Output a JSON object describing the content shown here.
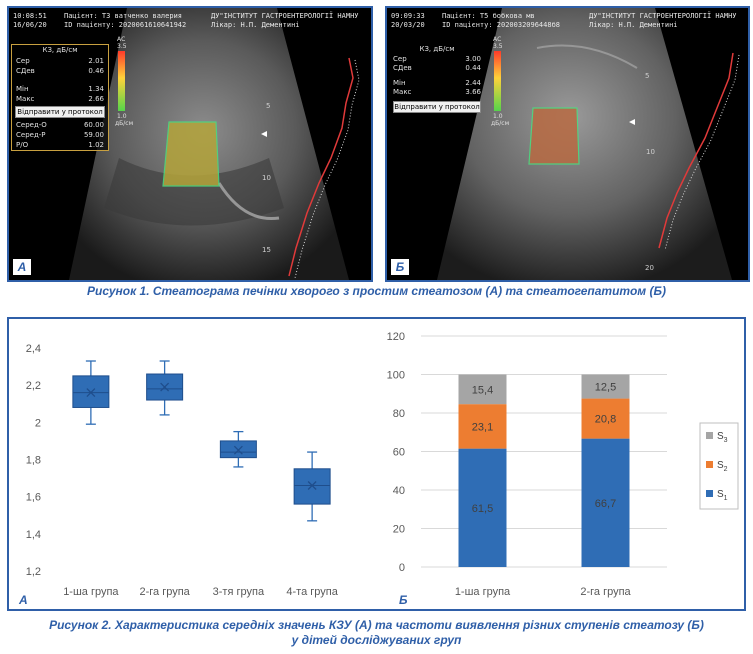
{
  "figure1": {
    "panel_a": {
      "letter": "А",
      "time": "10:08:51",
      "date": "16/06/20",
      "patient": "Пацієнт: Т3 ватченко валерия",
      "patient_id": "ID пацієнту: 2020061610641942",
      "institute": "ДУ\"ІНСТИТУТ ГАСТРОЕНТЕРОЛОГІЇ НАМНУ",
      "doctor": "Лікар: Н.П. Дементині",
      "kz_title": "КЗ, дБ/см",
      "stats": [
        {
          "label": "Сер",
          "value": "2.01"
        },
        {
          "label": "СДев",
          "value": "0.46"
        },
        {
          "label": "Мін",
          "value": "1.34"
        },
        {
          "label": "Макс",
          "value": "2.66"
        }
      ],
      "send_button": "Відправити у протокол",
      "extra": [
        {
          "label": "Серед-О",
          "value": "60.00"
        },
        {
          "label": "Серед-Р",
          "value": "59.00"
        },
        {
          "label": "Р/О",
          "value": "1.02"
        }
      ],
      "scale_top": "АС",
      "scale_max": "3.5",
      "scale_min": "1.0",
      "scale_unit": "дБ/см",
      "depth_marks": [
        "5",
        "10",
        "15"
      ]
    },
    "panel_b": {
      "letter": "Б",
      "time": "09:09:33",
      "date": "20/03/20",
      "patient": "Пацієнт: Т5 бобкова мв",
      "patient_id": "ID пацієнту: 2020032096448б8",
      "institute": "ДУ\"ІНСТИТУТ ГАСТРОЕНТЕРОЛОГІЇ НАМНУ",
      "doctor": "Лікар: Н.П. Дементині",
      "kz_title": "КЗ, дБ/см",
      "stats": [
        {
          "label": "Сер",
          "value": "3.00"
        },
        {
          "label": "СДев",
          "value": "0.44"
        },
        {
          "label": "Мін",
          "value": "2.44"
        },
        {
          "label": "Макс",
          "value": "3.66"
        }
      ],
      "send_button": "Відправити у протокол",
      "scale_top": "АС",
      "scale_max": "3.5",
      "scale_min": "1.0",
      "scale_unit": "дБ/см",
      "depth_marks": [
        "5",
        "10",
        "20"
      ]
    },
    "caption": "Рисунок 1. Стеатограма печінки хворого з простим стеатозом (А) та стеатогепатитом (Б)"
  },
  "figure2": {
    "caption_line1": "Рисунок 2. Характеристика середніх значень КЗУ (А) та частоти виявлення різних ступенів стеатозу (Б)",
    "caption_line2": "у дітей досліджуваних груп",
    "colors": {
      "box": "#2f6db5",
      "s1": "#2f6db5",
      "s2": "#ed7d31",
      "s3": "#a5a5a5"
    }
  },
  "chart_data": [
    {
      "type": "box",
      "panel_letter": "А",
      "categories": [
        "1-ша група",
        "2-га група",
        "3-тя група",
        "4-та група"
      ],
      "boxes": [
        {
          "min": 1.99,
          "q1": 2.08,
          "median": 2.16,
          "mean": 2.16,
          "q3": 2.25,
          "max": 2.33
        },
        {
          "min": 2.04,
          "q1": 2.12,
          "median": 2.18,
          "mean": 2.19,
          "q3": 2.26,
          "max": 2.33
        },
        {
          "min": 1.76,
          "q1": 1.81,
          "median": 1.84,
          "mean": 1.85,
          "q3": 1.9,
          "max": 1.95
        },
        {
          "min": 1.47,
          "q1": 1.56,
          "median": 1.66,
          "mean": 1.66,
          "q3": 1.75,
          "max": 1.84
        }
      ],
      "yticks": [
        "1,2",
        "1,4",
        "1,6",
        "1,8",
        "2",
        "2,2",
        "2,4"
      ],
      "ylim": [
        1.2,
        2.4
      ],
      "grid": false
    },
    {
      "type": "bar",
      "stacked": true,
      "panel_letter": "Б",
      "categories": [
        "1-ша група",
        "2-га група"
      ],
      "series": [
        {
          "name": "S1",
          "values": [
            61.5,
            66.7
          ],
          "labels": [
            "61,5",
            "66,7"
          ]
        },
        {
          "name": "S2",
          "values": [
            23.1,
            20.8
          ],
          "labels": [
            "23,1",
            "20,8"
          ]
        },
        {
          "name": "S3",
          "values": [
            15.4,
            12.5
          ],
          "labels": [
            "15,4",
            "12,5"
          ]
        }
      ],
      "legend": [
        {
          "base": "S",
          "sub": "3"
        },
        {
          "base": "S",
          "sub": "2"
        },
        {
          "base": "S",
          "sub": "1"
        }
      ],
      "yticks": [
        "0",
        "20",
        "40",
        "60",
        "80",
        "100",
        "120"
      ],
      "ylim": [
        0,
        120
      ],
      "grid": true,
      "legend_position": "right"
    }
  ]
}
